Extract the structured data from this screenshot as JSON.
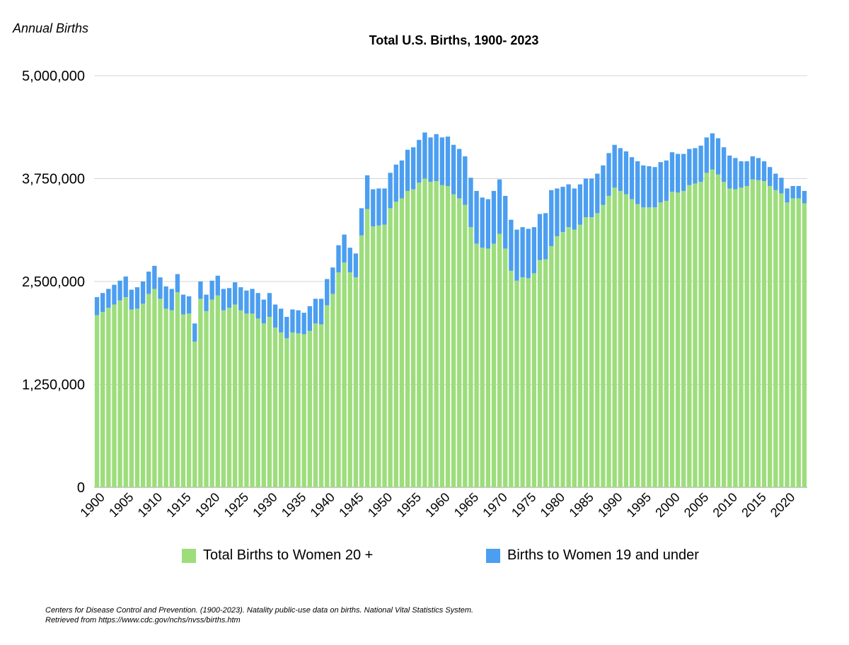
{
  "chart_data": {
    "type": "bar",
    "stacked": true,
    "title": "Total U.S. Births, 1900- 2023",
    "ylabel": "Annual Births",
    "xlabel": "",
    "ylim": [
      0,
      5000000
    ],
    "yticks": [
      0,
      1250000,
      2500000,
      3750000,
      5000000
    ],
    "ytick_labels": [
      "0",
      "1,250,000",
      "2,500,000",
      "3,750,000",
      "5,000,000"
    ],
    "xtick_labels": [
      "1900",
      "1905",
      "1910",
      "1915",
      "1920",
      "1925",
      "1930",
      "1935",
      "1940",
      "1945",
      "1950",
      "1955",
      "1960",
      "1965",
      "1970",
      "1975",
      "1980",
      "1985",
      "1990",
      "1995",
      "2000",
      "2005",
      "2010",
      "2015",
      "2020"
    ],
    "grid": true,
    "legend_position": "bottom",
    "x_start": 1900,
    "x_end": 2023,
    "series": [
      {
        "name": "Total Births to Women 20 +",
        "color": "#9ddd7c",
        "values": [
          2090000,
          2130000,
          2180000,
          2220000,
          2270000,
          2310000,
          2160000,
          2170000,
          2230000,
          2350000,
          2410000,
          2290000,
          2170000,
          2150000,
          2370000,
          2100000,
          2110000,
          1770000,
          2290000,
          2140000,
          2280000,
          2330000,
          2150000,
          2180000,
          2220000,
          2150000,
          2110000,
          2110000,
          2050000,
          1990000,
          2070000,
          1940000,
          1880000,
          1810000,
          1880000,
          1870000,
          1860000,
          1900000,
          1990000,
          1980000,
          2210000,
          2350000,
          2610000,
          2730000,
          2610000,
          2550000,
          3060000,
          3380000,
          3170000,
          3180000,
          3190000,
          3390000,
          3470000,
          3510000,
          3600000,
          3620000,
          3700000,
          3750000,
          3710000,
          3720000,
          3670000,
          3660000,
          3560000,
          3510000,
          3430000,
          3160000,
          2960000,
          2910000,
          2900000,
          2960000,
          3080000,
          2900000,
          2630000,
          2510000,
          2550000,
          2540000,
          2600000,
          2760000,
          2770000,
          2930000,
          3050000,
          3100000,
          3160000,
          3130000,
          3190000,
          3280000,
          3280000,
          3330000,
          3430000,
          3540000,
          3640000,
          3600000,
          3560000,
          3500000,
          3440000,
          3400000,
          3400000,
          3400000,
          3460000,
          3480000,
          3590000,
          3580000,
          3600000,
          3670000,
          3690000,
          3710000,
          3820000,
          3860000,
          3800000,
          3710000,
          3630000,
          3620000,
          3640000,
          3660000,
          3740000,
          3730000,
          3720000,
          3660000,
          3610000,
          3570000,
          3460000,
          3510000,
          3510000,
          3450000
        ]
      },
      {
        "name": "Births to Women 19 and under",
        "color": "#4b9ef0",
        "values": [
          220000,
          230000,
          230000,
          240000,
          240000,
          250000,
          240000,
          260000,
          270000,
          270000,
          280000,
          260000,
          270000,
          260000,
          220000,
          240000,
          210000,
          220000,
          210000,
          200000,
          230000,
          240000,
          260000,
          240000,
          270000,
          280000,
          280000,
          300000,
          310000,
          290000,
          290000,
          280000,
          290000,
          260000,
          280000,
          280000,
          260000,
          300000,
          300000,
          310000,
          320000,
          320000,
          330000,
          340000,
          300000,
          290000,
          330000,
          410000,
          450000,
          450000,
          440000,
          430000,
          450000,
          460000,
          500000,
          510000,
          520000,
          560000,
          540000,
          570000,
          580000,
          600000,
          600000,
          600000,
          590000,
          600000,
          640000,
          610000,
          600000,
          640000,
          660000,
          640000,
          620000,
          620000,
          610000,
          600000,
          560000,
          560000,
          560000,
          680000,
          580000,
          550000,
          520000,
          500000,
          490000,
          470000,
          470000,
          480000,
          480000,
          520000,
          520000,
          520000,
          520000,
          510000,
          520000,
          510000,
          500000,
          490000,
          490000,
          490000,
          480000,
          470000,
          450000,
          440000,
          430000,
          440000,
          430000,
          440000,
          440000,
          420000,
          400000,
          380000,
          320000,
          300000,
          280000,
          270000,
          240000,
          230000,
          200000,
          190000,
          170000,
          150000,
          150000,
          150000
        ]
      }
    ]
  },
  "source_lines": [
    "Centers for Disease Control and Prevention. (1900-2023). Natality public-use data on births. National Vital Statistics System.",
    "Retrieved from https://www.cdc.gov/nchs/nvss/births.htm"
  ]
}
